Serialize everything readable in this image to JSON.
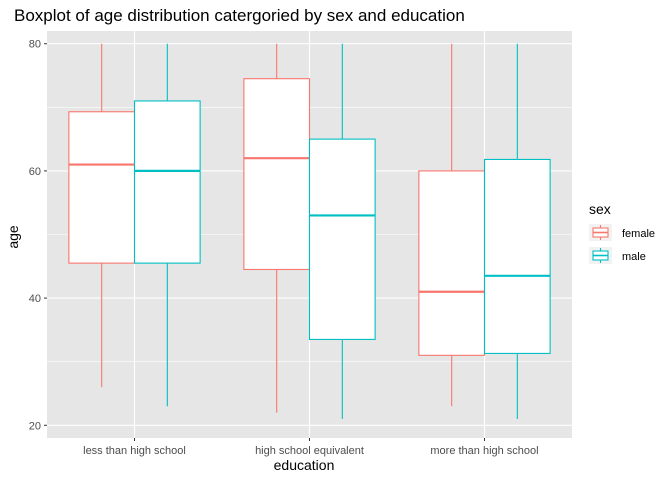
{
  "chart_data": {
    "type": "boxplot",
    "title": "Boxplot of age distribution catergoried by sex and education",
    "xlabel": "education",
    "ylabel": "age",
    "categories": [
      "less than high school",
      "high school equivalent",
      "more than high school"
    ],
    "ylim": [
      18,
      82
    ],
    "yticks": [
      20,
      40,
      60,
      80
    ],
    "grid": true,
    "legend": {
      "title": "sex",
      "position": "right"
    },
    "series": [
      {
        "name": "female",
        "color": "#F8766D",
        "boxes": [
          {
            "min": 26,
            "q1": 45.5,
            "median": 61,
            "q3": 69.3,
            "max": 80
          },
          {
            "min": 22,
            "q1": 44.5,
            "median": 62,
            "q3": 74.5,
            "max": 80
          },
          {
            "min": 23,
            "q1": 31,
            "median": 41,
            "q3": 60,
            "max": 80
          }
        ]
      },
      {
        "name": "male",
        "color": "#00BFC4",
        "boxes": [
          {
            "min": 23,
            "q1": 45.5,
            "median": 60,
            "q3": 71,
            "max": 80
          },
          {
            "min": 21,
            "q1": 33.5,
            "median": 53,
            "q3": 65,
            "max": 80
          },
          {
            "min": 21,
            "q1": 31.3,
            "median": 43.5,
            "q3": 61.8,
            "max": 80
          }
        ]
      }
    ]
  },
  "colors": {
    "panel_bg": "#E6E6E6",
    "grid_major": "#FFFFFF",
    "legend_key_bg": "#F2F2F2"
  }
}
